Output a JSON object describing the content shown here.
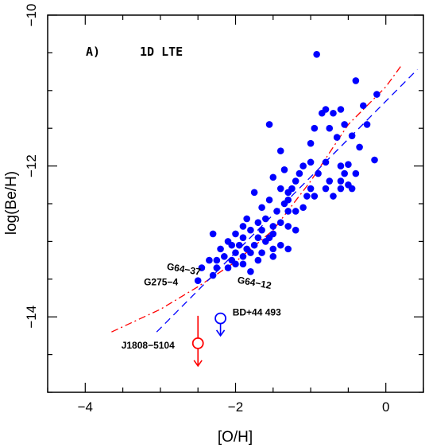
{
  "chart_data": {
    "type": "scatter",
    "panel_label": "A)",
    "panel_sublabel": "1D LTE",
    "xlabel": "[O/H]",
    "ylabel": "log(Be/H)",
    "xlim": [
      -4.5,
      0.5
    ],
    "ylim": [
      -15.0,
      -10.0
    ],
    "xticks": [
      -4,
      -2,
      0
    ],
    "yticks": [
      -14,
      -12,
      -10
    ],
    "xtick_labels": [
      "−4",
      "−2",
      "0"
    ],
    "ytick_labels": [
      "−14",
      "−12",
      "−10"
    ],
    "colors": {
      "points": "#0000ff",
      "red_fit": "#ff0000",
      "blue_fit": "#0000ff",
      "red_limit": "#ff0000",
      "blue_limit": "#0000ff"
    },
    "series": [
      {
        "kind": "points",
        "values": [
          [
            -0.92,
            -10.52
          ],
          [
            -0.4,
            -10.87
          ],
          [
            -0.12,
            -11.05
          ],
          [
            -0.3,
            -11.2
          ],
          [
            -0.6,
            -11.25
          ],
          [
            -0.8,
            -11.25
          ],
          [
            -0.85,
            -11.3
          ],
          [
            -0.7,
            -11.3
          ],
          [
            -0.55,
            -11.45
          ],
          [
            -0.25,
            -11.45
          ],
          [
            -0.95,
            -11.5
          ],
          [
            -0.75,
            -11.5
          ],
          [
            -1.55,
            -11.45
          ],
          [
            -0.45,
            -11.6
          ],
          [
            -0.65,
            -11.62
          ],
          [
            -1.0,
            -11.7
          ],
          [
            -0.35,
            -11.75
          ],
          [
            -1.4,
            -11.8
          ],
          [
            -1.0,
            -11.95
          ],
          [
            -0.8,
            -11.95
          ],
          [
            -0.5,
            -11.98
          ],
          [
            -0.15,
            -11.92
          ],
          [
            -1.1,
            -12.0
          ],
          [
            -0.6,
            -12.0
          ],
          [
            -1.35,
            -12.05
          ],
          [
            -1.15,
            -12.1
          ],
          [
            -0.9,
            -12.1
          ],
          [
            -0.55,
            -12.1
          ],
          [
            -0.4,
            -12.1
          ],
          [
            -1.5,
            -12.15
          ],
          [
            -0.6,
            -12.2
          ],
          [
            -0.75,
            -12.2
          ],
          [
            -1.2,
            -12.2
          ],
          [
            -0.5,
            -12.25
          ],
          [
            -0.6,
            -12.3
          ],
          [
            -1.4,
            -12.3
          ],
          [
            -1.0,
            -12.3
          ],
          [
            -0.8,
            -12.3
          ],
          [
            -1.25,
            -12.3
          ],
          [
            -0.45,
            -12.3
          ],
          [
            -1.3,
            -12.35
          ],
          [
            -1.05,
            -12.4
          ],
          [
            -0.7,
            -12.4
          ],
          [
            -0.95,
            -12.4
          ],
          [
            -1.75,
            -12.35
          ],
          [
            -1.55,
            -12.45
          ],
          [
            -1.3,
            -12.45
          ],
          [
            -1.35,
            -12.5
          ],
          [
            -1.1,
            -12.55
          ],
          [
            -1.65,
            -12.55
          ],
          [
            -1.45,
            -12.6
          ],
          [
            -1.3,
            -12.6
          ],
          [
            -1.2,
            -12.6
          ],
          [
            -1.6,
            -12.7
          ],
          [
            -1.4,
            -12.75
          ],
          [
            -1.85,
            -12.7
          ],
          [
            -1.7,
            -12.75
          ],
          [
            -1.5,
            -12.8
          ],
          [
            -1.3,
            -12.8
          ],
          [
            -1.9,
            -12.8
          ],
          [
            -1.65,
            -12.85
          ],
          [
            -1.2,
            -12.85
          ],
          [
            -1.8,
            -12.85
          ],
          [
            -2.0,
            -12.9
          ],
          [
            -1.5,
            -12.9
          ],
          [
            -1.7,
            -12.95
          ],
          [
            -1.55,
            -12.95
          ],
          [
            -1.9,
            -12.95
          ],
          [
            -2.1,
            -13.0
          ],
          [
            -2.3,
            -12.9
          ],
          [
            -1.6,
            -13.0
          ],
          [
            -1.75,
            -13.05
          ],
          [
            -1.95,
            -13.05
          ],
          [
            -2.05,
            -13.05
          ],
          [
            -1.4,
            -13.05
          ],
          [
            -2.2,
            -13.1
          ],
          [
            -1.85,
            -13.1
          ],
          [
            -1.5,
            -13.1
          ],
          [
            -1.3,
            -13.1
          ],
          [
            -2.0,
            -13.15
          ],
          [
            -1.8,
            -13.15
          ],
          [
            -1.65,
            -13.15
          ],
          [
            -2.15,
            -13.2
          ],
          [
            -1.9,
            -13.2
          ],
          [
            -1.5,
            -13.2
          ],
          [
            -2.25,
            -13.25
          ],
          [
            -1.7,
            -13.25
          ],
          [
            -2.05,
            -13.25
          ],
          [
            -2.35,
            -13.25
          ],
          [
            -1.9,
            -13.3
          ],
          [
            -2.0,
            -13.3
          ],
          [
            -2.25,
            -13.35
          ],
          [
            -2.45,
            -13.35
          ],
          [
            -2.1,
            -13.35
          ],
          [
            -1.8,
            -13.4
          ],
          [
            -2.3,
            -13.45
          ],
          [
            -2.5,
            -13.52
          ]
        ]
      },
      {
        "kind": "line",
        "style": "dashdot",
        "color": "red",
        "values": [
          [
            -3.65,
            -14.2
          ],
          [
            -3.0,
            -13.9
          ],
          [
            -2.5,
            -13.6
          ],
          [
            -2.0,
            -13.27
          ],
          [
            -1.5,
            -12.85
          ],
          [
            -1.0,
            -12.2
          ],
          [
            -0.5,
            -11.45
          ],
          [
            0.0,
            -10.95
          ],
          [
            0.22,
            -10.65
          ]
        ]
      },
      {
        "kind": "line",
        "style": "dashed",
        "color": "blue",
        "values": [
          [
            -3.05,
            -14.2
          ],
          [
            0.42,
            -10.72
          ]
        ]
      },
      {
        "kind": "upper_limit",
        "name": "J1808-5104",
        "color": "red",
        "x": -2.5,
        "y": -14.35,
        "arrow_to": -14.65
      },
      {
        "kind": "upper_limit",
        "name": "BD+44 493",
        "color": "blue",
        "x": -2.2,
        "y": -14.02,
        "arrow_to": -14.25
      }
    ],
    "annotations": [
      {
        "text": "G64−37",
        "x": -2.92,
        "y": -13.37,
        "rotate": 10
      },
      {
        "text": "G275−4",
        "x": -3.22,
        "y": -13.58,
        "rotate": 0
      },
      {
        "text": "G64−12",
        "x": -1.98,
        "y": -13.55,
        "rotate": 10
      },
      {
        "text": "BD+44 493",
        "x": -2.04,
        "y": -13.98,
        "rotate": 0
      },
      {
        "text": "J1808−5104",
        "x": -3.52,
        "y": -14.42,
        "rotate": 0
      }
    ]
  }
}
